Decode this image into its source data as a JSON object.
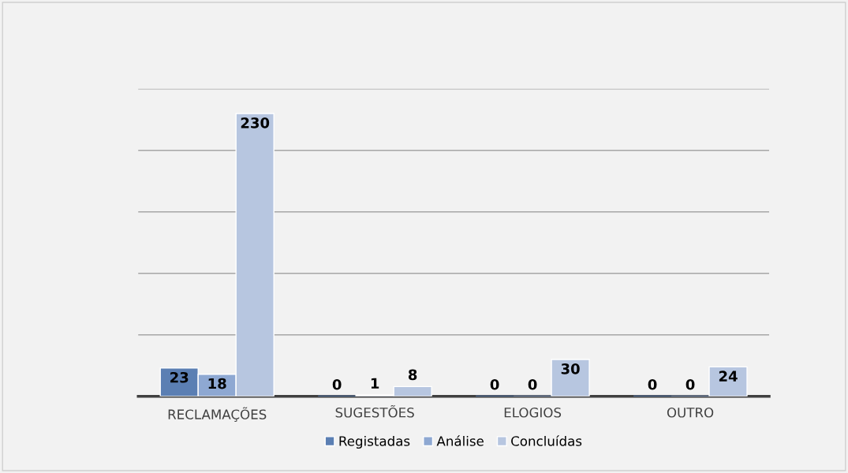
{
  "chart_data": {
    "type": "bar",
    "categories": [
      "RECLAMAÇÕES",
      "SUGESTÕES",
      "ELOGIOS",
      "OUTRO"
    ],
    "series": [
      {
        "name": "Registadas",
        "color": "#5b7fb3",
        "values": [
          23,
          0,
          0,
          0
        ]
      },
      {
        "name": "Análise",
        "color": "#8ea8d2",
        "values": [
          18,
          1,
          0,
          0
        ]
      },
      {
        "name": "Concluídas",
        "color": "#b7c6e0",
        "values": [
          230,
          8,
          30,
          24
        ]
      }
    ],
    "ylim": [
      0,
      250
    ],
    "yticks": [
      {
        "value": 0,
        "label": null
      },
      {
        "value": 50,
        "label": null
      },
      {
        "value": 100,
        "label": null
      },
      {
        "value": 150,
        "label": null
      },
      {
        "value": 200,
        "label": null
      },
      {
        "value": 250,
        "label": null
      }
    ],
    "tick_labels": "x",
    "grid": "y",
    "legend": "bottom",
    "data_labels": true
  }
}
